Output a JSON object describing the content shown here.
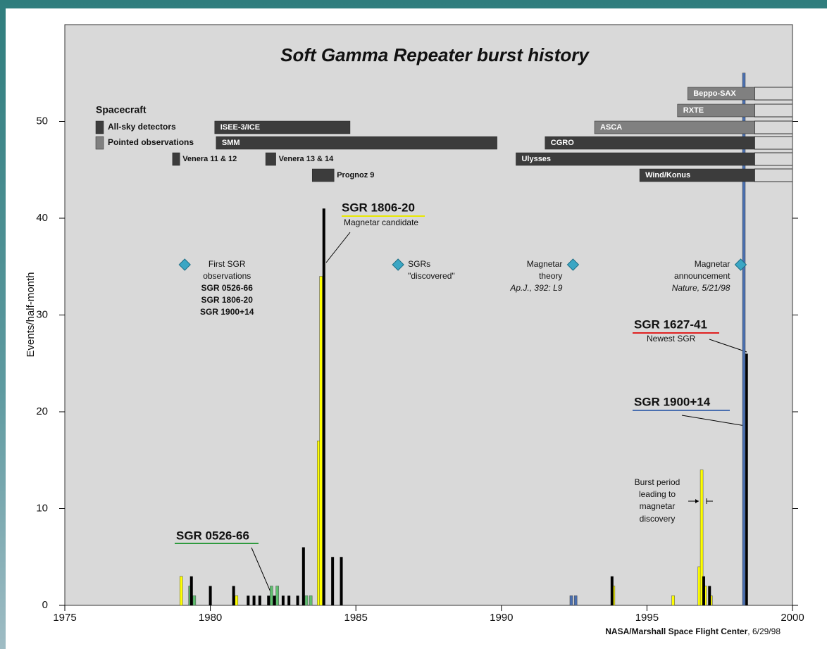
{
  "chart_data": {
    "type": "spikes",
    "title": "Soft Gamma Repeater burst history",
    "ylabel": "Events/half-month",
    "xlim": [
      1975,
      2000
    ],
    "xticks": [
      1975,
      1980,
      1985,
      1990,
      1995,
      2000
    ],
    "ylim": [
      0,
      60
    ],
    "yticks": [
      0,
      10,
      20,
      30,
      40,
      50
    ],
    "series": [
      {
        "color": "#ffff00",
        "x": [
          1979.0,
          1980.9,
          1983.72,
          1983.8,
          1993.85,
          1995.9,
          1996.8,
          1996.88,
          1997.0,
          1997.2
        ],
        "values": [
          3,
          1,
          17,
          34,
          2,
          1,
          4,
          14,
          2,
          1
        ]
      },
      {
        "color": "#5fbf6f",
        "x": [
          1979.3,
          1979.45,
          1982.1,
          1982.3,
          1983.3,
          1983.45
        ],
        "values": [
          2,
          1,
          2,
          2,
          1,
          1
        ]
      },
      {
        "color": "#000000",
        "x": [
          1979.35,
          1980.0,
          1980.8,
          1981.3,
          1981.5,
          1981.7,
          1982.0,
          1982.2,
          1982.5,
          1982.7,
          1983.0,
          1983.2,
          1983.9,
          1984.2,
          1984.5,
          1993.8,
          1996.95,
          1997.15,
          1998.42
        ],
        "values": [
          3,
          2,
          2,
          1,
          1,
          1,
          1,
          1,
          1,
          1,
          1,
          6,
          41,
          5,
          5,
          3,
          3,
          2,
          26
        ]
      },
      {
        "color": "#4a6fb0",
        "x": [
          1992.4,
          1992.55,
          1998.33
        ],
        "values": [
          1,
          1,
          55
        ]
      }
    ],
    "legend_title": "Spacecraft",
    "legend": [
      {
        "label": "All-sky detectors",
        "color": "#3c3c3c"
      },
      {
        "label": "Pointed observations",
        "color": "#808080"
      }
    ],
    "spacecraft_rows": [
      [
        {
          "label": "Beppo-SAX",
          "start": 1996.4,
          "end": 1998.7,
          "color": "#808080",
          "ongoing": true
        }
      ],
      [
        {
          "label": "RXTE",
          "start": 1996.05,
          "end": 1998.7,
          "color": "#808080",
          "ongoing": true
        }
      ],
      [
        {
          "label": "ISEE-3/ICE",
          "start": 1980.15,
          "end": 1984.8,
          "color": "#3c3c3c",
          "ongoing": false
        },
        {
          "label": "ASCA",
          "start": 1993.2,
          "end": 1998.7,
          "color": "#808080",
          "ongoing": true
        }
      ],
      [
        {
          "label": "SMM",
          "start": 1980.2,
          "end": 1989.85,
          "color": "#3c3c3c",
          "ongoing": false
        },
        {
          "label": "CGRO",
          "start": 1991.5,
          "end": 1998.7,
          "color": "#3c3c3c",
          "ongoing": true
        }
      ],
      [
        {
          "label": "Venera 11 & 12",
          "start": 1978.7,
          "end": 1978.95,
          "color": "#3c3c3c",
          "ongoing": false
        },
        {
          "label": "Venera 13 & 14",
          "start": 1981.9,
          "end": 1982.25,
          "color": "#3c3c3c",
          "ongoing": false
        },
        {
          "label": "Ulysses",
          "start": 1990.5,
          "end": 1998.7,
          "color": "#3c3c3c",
          "ongoing": true
        }
      ],
      [
        {
          "label": "Prognoz 9",
          "start": 1983.5,
          "end": 1984.25,
          "color": "#3c3c3c",
          "ongoing": false
        },
        {
          "label": "Wind/Konus",
          "start": 1994.75,
          "end": 1998.7,
          "color": "#3c3c3c",
          "ongoing": true
        }
      ]
    ],
    "markers": [
      {
        "x": 1979.12,
        "y": 35.2,
        "lines": [
          "First SGR",
          "observations",
          "SGR 0526-66",
          "SGR 1806-20",
          "SGR 1900+14"
        ]
      },
      {
        "x": 1986.45,
        "y": 35.2,
        "lines": [
          "SGRs",
          "\"discovered\""
        ]
      },
      {
        "x": 1992.46,
        "y": 35.2,
        "lines": [
          "Magnetar",
          "theory",
          "Ap.J., 392: L9"
        ]
      },
      {
        "x": 1998.22,
        "y": 35.2,
        "lines": [
          "Magnetar",
          "announcement",
          "Nature, 5/21/98"
        ]
      }
    ],
    "annotations": {
      "sgr1806": "SGR 1806-20",
      "sgr1806_note": "Magnetar candidate",
      "sgr0526": "SGR 0526-66",
      "sgr1627": "SGR 1627-41",
      "sgr1627_note": "Newest SGR",
      "sgr1900": "SGR 1900+14",
      "burst_period": [
        "Burst period",
        "leading to",
        "magnetar",
        "discovery"
      ]
    },
    "credit": "NASA/Marshall Space Flight Center",
    "credit_date": ", 6/29/98"
  }
}
